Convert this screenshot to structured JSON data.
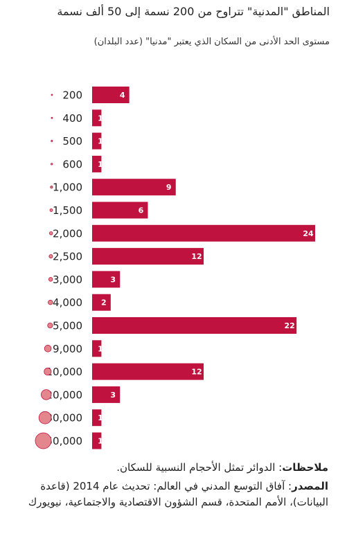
{
  "title": "المناطق \"المدنية\" تتراوح من 200 نسمة إلى 50 ألف نسمة",
  "subtitle": "مستوى الحد الأدنى من السكان الذي يعتبر \"مدنيا\" (عدد البلدان)",
  "colors": {
    "bar": "#c0123e",
    "bar_label": "#ffffff",
    "circle_fill": "#e3868e",
    "circle_stroke": "#c0123e"
  },
  "chart_data": {
    "type": "bar",
    "orientation": "horizontal",
    "categories": [
      "200",
      "400",
      "500",
      "600",
      "1,000",
      "1,500",
      "2,000",
      "2,500",
      "3,000",
      "4,000",
      "5,000",
      "9,000",
      "10,000",
      "20,000",
      "30,000",
      "50,000"
    ],
    "category_values": [
      200,
      400,
      500,
      600,
      1000,
      1500,
      2000,
      2500,
      3000,
      4000,
      5000,
      9000,
      10000,
      20000,
      30000,
      50000
    ],
    "values": [
      4,
      1,
      1,
      1,
      9,
      6,
      24,
      12,
      3,
      2,
      22,
      1,
      12,
      3,
      1,
      1
    ],
    "xlim": [
      0,
      24
    ],
    "marker": "circle area proportional to population",
    "grid": false,
    "legend": "none"
  },
  "notes": {
    "label": "ملاحظات",
    "text": ": الدوائر تمثل الأحجام النسبية للسكان."
  },
  "source": {
    "label": "المصدر",
    "text": ": آفاق التوسع المدني في العالم: تحديث عام 2014 (قاعدة البيانات)، الأمم المتحدة، قسم الشؤون الاقتصادية والاجتماعية، نيويورك"
  }
}
